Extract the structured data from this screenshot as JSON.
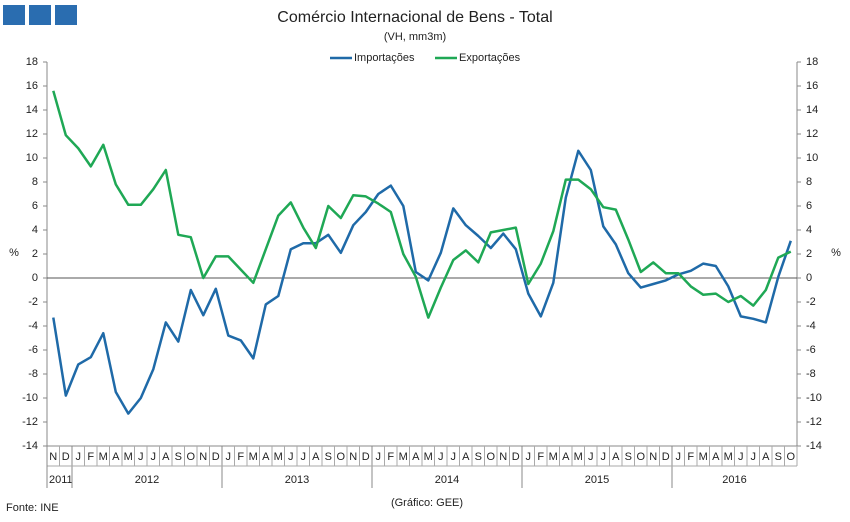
{
  "chart_data": {
    "type": "line",
    "title": "Comércio Internacional de Bens - Total",
    "subtitle": "(VH, mm3m)",
    "y_label": "%",
    "y2_label": "%",
    "source": "Fonte: INE",
    "credit": "(Gráfico: GEE)",
    "categories": [
      "N",
      "D",
      "J",
      "F",
      "M",
      "A",
      "M",
      "J",
      "J",
      "A",
      "S",
      "O",
      "N",
      "D",
      "J",
      "F",
      "M",
      "A",
      "M",
      "J",
      "J",
      "A",
      "S",
      "O",
      "N",
      "D",
      "J",
      "F",
      "M",
      "A",
      "M",
      "J",
      "J",
      "A",
      "S",
      "O",
      "N",
      "D",
      "J",
      "F",
      "M",
      "A",
      "M",
      "J",
      "J",
      "A",
      "S",
      "O",
      "N",
      "D",
      "J",
      "F",
      "M",
      "A",
      "M",
      "J",
      "J",
      "A",
      "S",
      "O"
    ],
    "years": [
      "2011",
      "2012",
      "2013",
      "2014",
      "2015",
      "2016"
    ],
    "series": [
      {
        "name": "Importações",
        "color": "#1f6aa8",
        "values": [
          -3.3,
          -9.8,
          -7.2,
          -6.6,
          -4.6,
          -9.5,
          -11.3,
          -10.0,
          -7.6,
          -3.7,
          -5.3,
          -1.0,
          -3.1,
          -0.9,
          -4.8,
          -5.2,
          -6.7,
          -2.2,
          -1.5,
          2.4,
          2.9,
          2.9,
          3.6,
          2.1,
          4.4,
          5.5,
          7.0,
          7.7,
          6.0,
          0.5,
          -0.2,
          2.1,
          5.8,
          4.4,
          3.5,
          2.5,
          3.7,
          2.4,
          -1.3,
          -3.2,
          -0.4,
          6.7,
          10.6,
          9.0,
          4.3,
          2.8,
          0.4,
          -0.8,
          -0.5,
          -0.2,
          0.3,
          0.6,
          1.2,
          1.0,
          -0.7,
          -3.2,
          -3.4,
          -3.7,
          0.1,
          3.1
        ]
      },
      {
        "name": "Exportações",
        "color": "#1fa855",
        "values": [
          15.6,
          11.9,
          10.8,
          9.3,
          11.1,
          7.8,
          6.1,
          6.1,
          7.4,
          9.0,
          3.6,
          3.4,
          0,
          1.8,
          1.8,
          0.7,
          -0.4,
          2.4,
          5.2,
          6.3,
          4.2,
          2.5,
          6.0,
          5.0,
          6.9,
          6.8,
          6.2,
          5.5,
          2.0,
          0.1,
          -3.3,
          -0.8,
          1.5,
          2.3,
          1.3,
          3.8,
          4.0,
          4.2,
          -0.5,
          1.2,
          3.9,
          8.2,
          8.2,
          7.4,
          5.9,
          5.7,
          3.2,
          0.5,
          1.3,
          0.4,
          0.4,
          -0.7,
          -1.4,
          -1.3,
          -2.0,
          -1.5,
          -2.3,
          -1.0,
          1.7,
          2.2
        ]
      }
    ],
    "ylim": [
      -14,
      18
    ],
    "yticks": [
      -14,
      -12,
      -10,
      -8,
      -6,
      -4,
      -2,
      0,
      2,
      4,
      6,
      8,
      10,
      12,
      14,
      16,
      18
    ],
    "y2lim": [
      -14,
      18
    ],
    "y2ticks": [
      -14,
      -12,
      -10,
      -8,
      -6,
      -4,
      -2,
      0,
      2,
      4,
      6,
      8,
      10,
      12,
      14,
      16,
      18
    ],
    "grid": false,
    "legend": "top"
  }
}
